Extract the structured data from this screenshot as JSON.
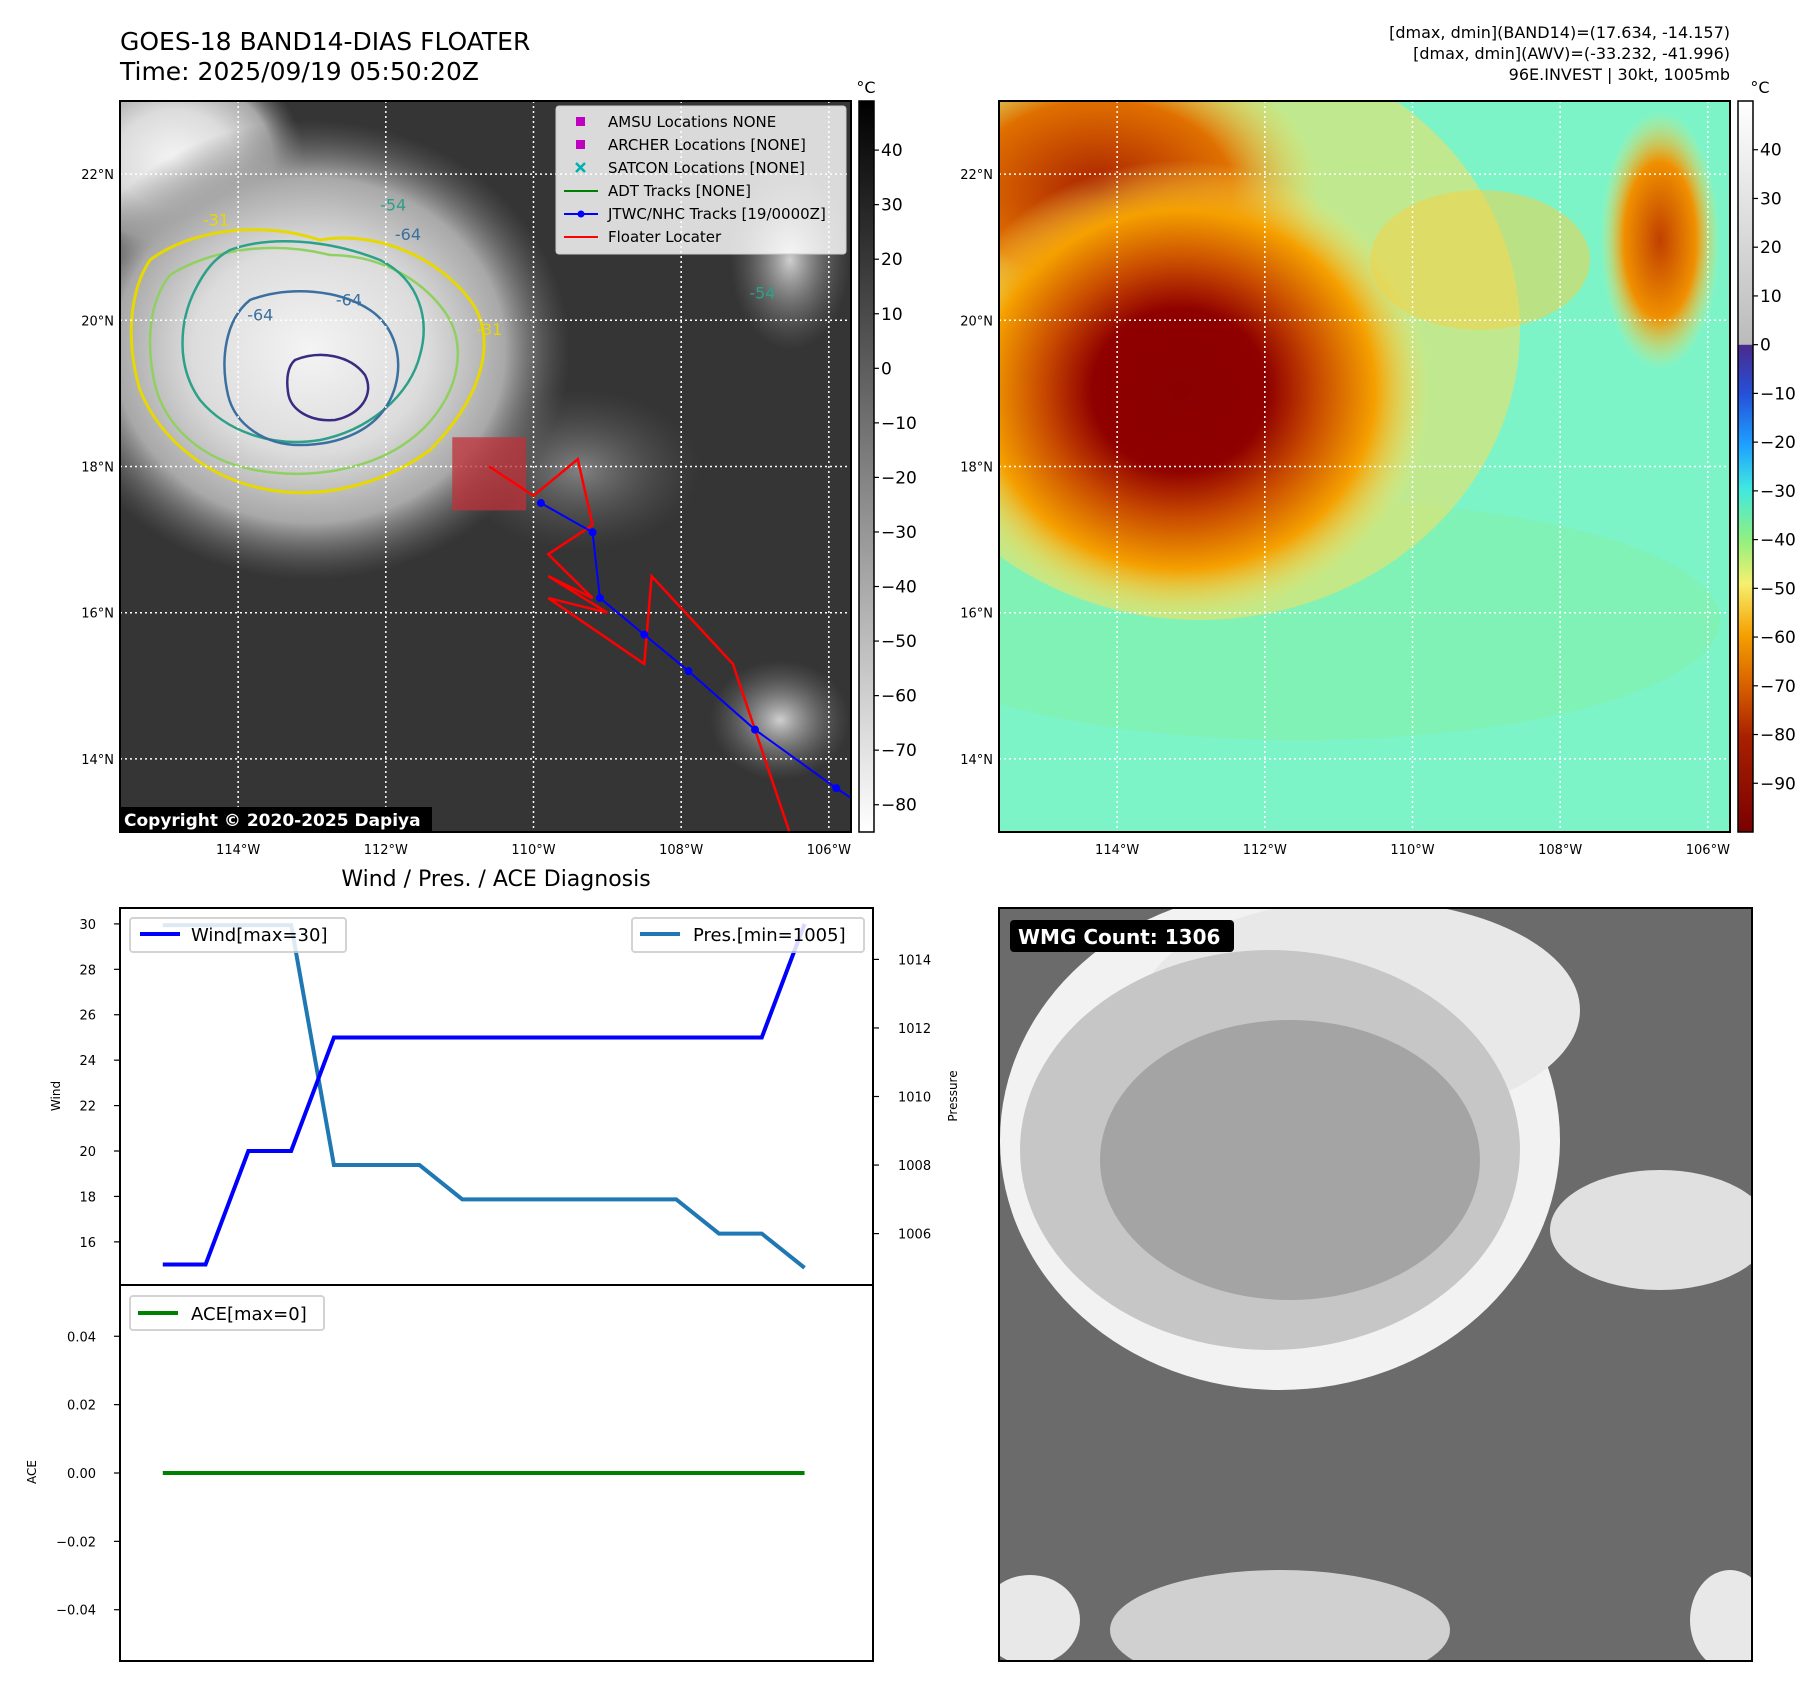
{
  "header": {
    "title_line1": "GOES-18 BAND14-DIAS FLOATER",
    "title_line2": "Time: 2025/09/19 05:50:20Z",
    "stats_line1": "[dmax, dmin](BAND14)=(17.634, -14.157)",
    "stats_line2": "[dmax, dmin](AWV)=(-33.232, -41.996)",
    "stats_line3": "96E.INVEST | 30kt, 1005mb"
  },
  "map_axes": {
    "lat_labels": [
      "22°N",
      "20°N",
      "18°N",
      "16°N",
      "14°N"
    ],
    "lat_values": [
      22,
      20,
      18,
      16,
      14
    ],
    "lon_labels": [
      "114°W",
      "112°W",
      "110°W",
      "108°W",
      "106°W"
    ],
    "lon_values": [
      -114,
      -112,
      -110,
      -108,
      -106
    ],
    "lon_range": [
      -115.6,
      -105.7
    ],
    "lat_range": [
      13.0,
      23.0
    ]
  },
  "ir_panel": {
    "colorbar_unit": "°C",
    "colorbar_ticks": [
      "40",
      "30",
      "20",
      "10",
      "0",
      "−10",
      "−20",
      "−30",
      "−40",
      "−50",
      "−60",
      "−70",
      "−80"
    ],
    "colorbar_values": [
      40,
      30,
      20,
      10,
      0,
      -10,
      -20,
      -30,
      -40,
      -50,
      -60,
      -70,
      -80
    ],
    "colorbar_range": [
      -85,
      49
    ],
    "contour_labels": [
      {
        "text": "-31",
        "lon": -114.3,
        "lat": 21.3,
        "color": "#e6d800"
      },
      {
        "text": "-54",
        "lon": -111.9,
        "lat": 21.5,
        "color": "#2ca089"
      },
      {
        "text": "-64",
        "lon": -111.7,
        "lat": 21.1,
        "color": "#3a6fa0"
      },
      {
        "text": "-64",
        "lon": -113.7,
        "lat": 20.0,
        "color": "#3a6fa0"
      },
      {
        "text": "-64",
        "lon": -112.5,
        "lat": 20.2,
        "color": "#3a6fa0"
      },
      {
        "text": "-31",
        "lon": -110.6,
        "lat": 19.8,
        "color": "#e6d800"
      },
      {
        "text": "-54",
        "lon": -106.9,
        "lat": 20.3,
        "color": "#2ca089"
      }
    ],
    "copyright": "Copyright © 2020-2025 Dapiya",
    "legend": [
      {
        "label": "AMSU Locations NONE",
        "marker": "square",
        "color": "#c000c0"
      },
      {
        "label": "ARCHER Locations [NONE]",
        "marker": "square",
        "color": "#c000c0"
      },
      {
        "label": "SATCON Locations [NONE]",
        "marker": "x",
        "color": "#00b0b0"
      },
      {
        "label": "ADT Tracks [NONE]",
        "marker": "line",
        "color": "#008000"
      },
      {
        "label": "JTWC/NHC Tracks [19/0000Z]",
        "marker": "line-dot",
        "color": "#0000ff"
      },
      {
        "label": "Floater Locater",
        "marker": "line",
        "color": "#ff0000"
      }
    ],
    "jtwc_track": [
      {
        "lon": -109.9,
        "lat": 17.5
      },
      {
        "lon": -109.2,
        "lat": 17.1
      },
      {
        "lon": -109.1,
        "lat": 16.2
      },
      {
        "lon": -108.5,
        "lat": 15.7
      },
      {
        "lon": -107.9,
        "lat": 15.2
      },
      {
        "lon": -107.0,
        "lat": 14.4
      },
      {
        "lon": -105.9,
        "lat": 13.6
      },
      {
        "lon": -105.6,
        "lat": 13.4
      }
    ],
    "floater_track": [
      {
        "lon": -110.6,
        "lat": 18.0
      },
      {
        "lon": -110.0,
        "lat": 17.6
      },
      {
        "lon": -109.4,
        "lat": 18.1
      },
      {
        "lon": -109.2,
        "lat": 17.2
      },
      {
        "lon": -109.8,
        "lat": 16.8
      },
      {
        "lon": -109.2,
        "lat": 16.2
      },
      {
        "lon": -109.8,
        "lat": 16.5
      },
      {
        "lon": -109.0,
        "lat": 16.0
      },
      {
        "lon": -109.8,
        "lat": 16.2
      },
      {
        "lon": -108.5,
        "lat": 15.3
      },
      {
        "lon": -108.4,
        "lat": 16.5
      },
      {
        "lon": -107.3,
        "lat": 15.3
      },
      {
        "lon": -106.5,
        "lat": 12.9
      }
    ],
    "floater_box": {
      "lon_min": -111.1,
      "lon_max": -110.1,
      "lat_min": 17.4,
      "lat_max": 18.4
    }
  },
  "awv_panel": {
    "colorbar_unit": "°C",
    "colorbar_ticks": [
      "40",
      "30",
      "20",
      "10",
      "0",
      "−10",
      "−20",
      "−30",
      "−40",
      "−50",
      "−60",
      "−70",
      "−80",
      "−90"
    ],
    "colorbar_values": [
      40,
      30,
      20,
      10,
      0,
      -10,
      -20,
      -30,
      -40,
      -50,
      -60,
      -70,
      -80,
      -90
    ],
    "colorbar_range": [
      -100,
      50
    ]
  },
  "diagnosis": {
    "title": "Wind / Pres. / ACE Diagnosis",
    "wind_label": "Wind",
    "pressure_label": "Pressure",
    "ace_label": "ACE",
    "wind_legend": "Wind[max=30]",
    "pressure_legend": "Pres.[min=1005]",
    "ace_legend": "ACE[max=0]",
    "wind_ticks": [
      "16",
      "18",
      "20",
      "22",
      "24",
      "26",
      "28",
      "30"
    ],
    "pressure_ticks": [
      "1006",
      "1008",
      "1010",
      "1012",
      "1014"
    ],
    "ace_ticks": [
      "0.04",
      "0.02",
      "0.00",
      "−0.02",
      "−0.04"
    ]
  },
  "chart_data": [
    {
      "type": "line",
      "title": "Wind / Pres. / ACE Diagnosis",
      "x": [
        0,
        1,
        2,
        3,
        4,
        5,
        6,
        7,
        8,
        9,
        10,
        11,
        12,
        13,
        14,
        15
      ],
      "series": [
        {
          "name": "Wind[max=30]",
          "axis": "left",
          "color": "#0000ff",
          "values": [
            15,
            15,
            20,
            20,
            25,
            25,
            25,
            25,
            25,
            25,
            25,
            25,
            25,
            25,
            25,
            30
          ]
        },
        {
          "name": "Pres.[min=1005]",
          "axis": "right",
          "color": "#1f77b4",
          "values": [
            1015,
            1015,
            1015,
            1015,
            1008,
            1008,
            1008,
            1007,
            1007,
            1007,
            1007,
            1007,
            1007,
            1006,
            1006,
            1005
          ]
        }
      ],
      "ylabel": "Wind",
      "y2label": "Pressure",
      "ylim": [
        14.1,
        30.7
      ],
      "y2lim": [
        1004.5,
        1015.5
      ]
    },
    {
      "type": "line",
      "x": [
        0,
        1,
        2,
        3,
        4,
        5,
        6,
        7,
        8,
        9,
        10,
        11,
        12,
        13,
        14,
        15
      ],
      "series": [
        {
          "name": "ACE[max=0]",
          "color": "#008000",
          "values": [
            0,
            0,
            0,
            0,
            0,
            0,
            0,
            0,
            0,
            0,
            0,
            0,
            0,
            0,
            0,
            0
          ]
        }
      ],
      "ylabel": "ACE",
      "ylim": [
        -0.055,
        0.055
      ]
    }
  ],
  "wmg_panel": {
    "label": "WMG Count: 1306"
  }
}
